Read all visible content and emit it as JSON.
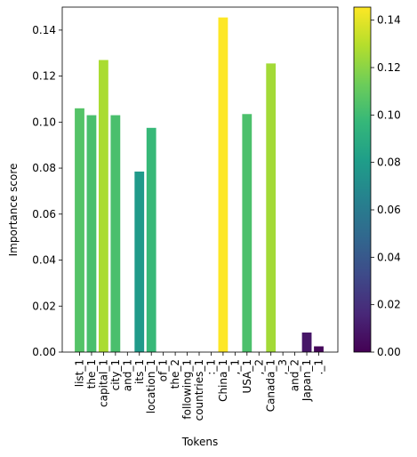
{
  "chart_data": {
    "type": "bar",
    "xlabel": "Tokens",
    "ylabel": "Importance score",
    "ylim": [
      0,
      0.15
    ],
    "yticks": [
      0.0,
      0.02,
      0.04,
      0.06,
      0.08,
      0.1,
      0.12,
      0.14
    ],
    "ytick_labels": [
      "0.00",
      "0.02",
      "0.04",
      "0.06",
      "0.08",
      "0.10",
      "0.12",
      "0.14"
    ],
    "categories": [
      "list_1",
      "the_1",
      "capital_1",
      "city_1",
      "and_1",
      "its_1",
      "location_1",
      "of_1",
      "the_2",
      "following_1",
      "countries_1",
      ":_1",
      "China_1",
      ",_1",
      "USA_1",
      ",_2",
      "Canada_1",
      ",_3",
      "and_2",
      "Japan_1",
      "._1"
    ],
    "values": [
      0.106,
      0.103,
      0.127,
      0.103,
      0.0,
      0.0785,
      0.0975,
      0.0,
      0.0,
      0.0,
      0.0,
      0.0,
      0.1455,
      0.0,
      0.1035,
      0.0,
      0.1255,
      0.0,
      0.0,
      0.0085,
      0.0025
    ],
    "grid": false,
    "legend": "none",
    "colorbar": {
      "colormap": "viridis",
      "range": [
        0,
        0.1455
      ],
      "ticks": [
        0.0,
        0.02,
        0.04,
        0.06,
        0.08,
        0.1,
        0.12,
        0.14
      ],
      "tick_labels": [
        "0.00",
        "0.02",
        "0.04",
        "0.06",
        "0.08",
        "0.10",
        "0.12",
        "0.14"
      ]
    }
  }
}
